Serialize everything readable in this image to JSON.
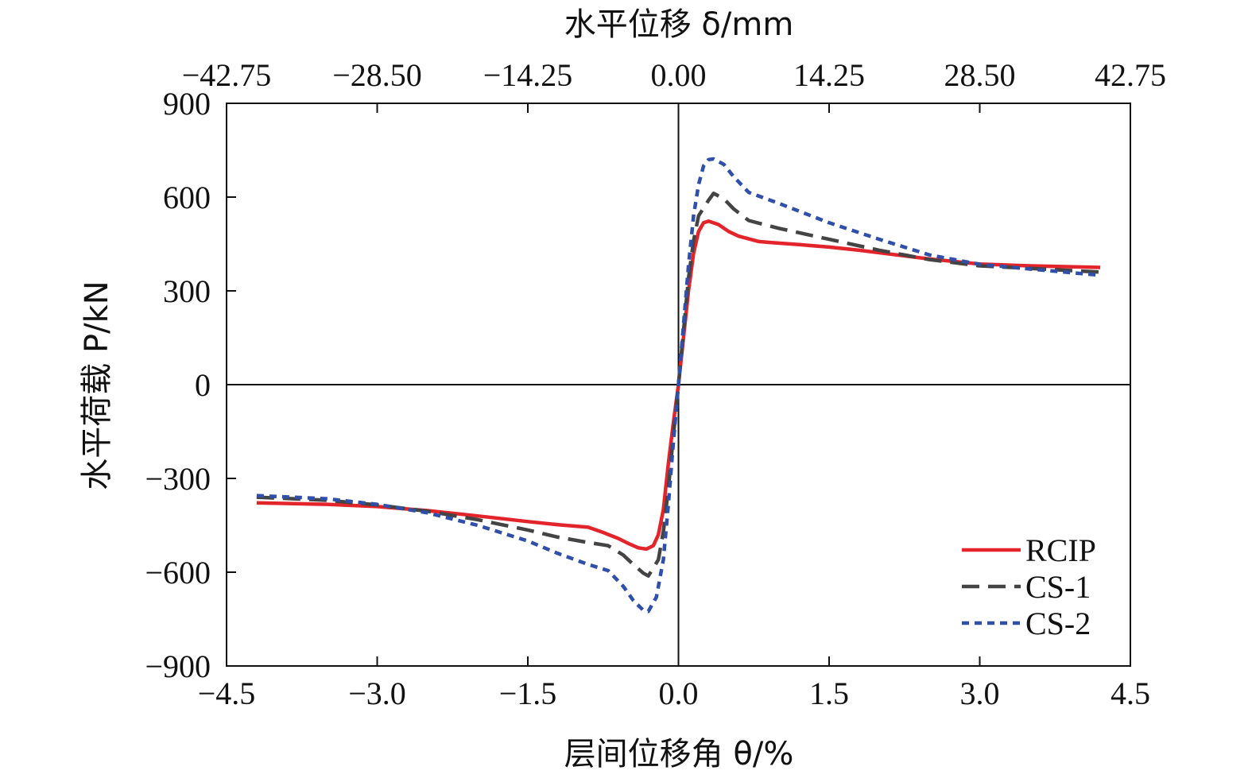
{
  "chart_data": {
    "type": "line",
    "title": "",
    "xlabel": "层间位移角 θ/%",
    "ylabel": "水平荷载 P/kN",
    "x2label": "水平位移 δ/mm",
    "xlim": [
      -4.5,
      4.5
    ],
    "ylim": [
      -900,
      900
    ],
    "x_ticks": [
      "−4.5",
      "−3.0",
      "−1.5",
      "0.0",
      "1.5",
      "3.0",
      "4.5"
    ],
    "x2_ticks": [
      "−42.75",
      "−28.50",
      "−14.25",
      "0.00",
      "14.25",
      "28.50",
      "42.75"
    ],
    "y_ticks": [
      "900",
      "600",
      "300",
      "0",
      "−300",
      "−600",
      "−900"
    ],
    "grid": false,
    "legend_position": "bottom-right",
    "series": [
      {
        "name": "RCIP",
        "color": "#e3242b",
        "dash": "solid",
        "x": [
          -4.2,
          -3.5,
          -3.0,
          -2.5,
          -2.0,
          -1.5,
          -1.2,
          -0.9,
          -0.75,
          -0.6,
          -0.5,
          -0.4,
          -0.32,
          -0.25,
          -0.2,
          -0.15,
          -0.1,
          -0.05,
          0,
          0.05,
          0.1,
          0.15,
          0.2,
          0.25,
          0.3,
          0.4,
          0.5,
          0.6,
          0.8,
          0.9,
          1.2,
          1.5,
          1.8,
          2.0,
          2.5,
          3.0,
          3.5,
          4.2
        ],
        "y": [
          -378,
          -383,
          -390,
          -403,
          -420,
          -438,
          -448,
          -456,
          -473,
          -492,
          -508,
          -522,
          -526,
          -515,
          -480,
          -400,
          -250,
          -120,
          0,
          150,
          300,
          420,
          490,
          518,
          523,
          512,
          490,
          475,
          458,
          455,
          448,
          440,
          430,
          422,
          402,
          386,
          380,
          375
        ]
      },
      {
        "name": "CS-1",
        "color": "#444444",
        "dash": "22,11",
        "x": [
          -4.2,
          -3.5,
          -3.0,
          -2.5,
          -2.0,
          -1.5,
          -1.2,
          -0.9,
          -0.7,
          -0.55,
          -0.45,
          -0.35,
          -0.3,
          -0.2,
          -0.15,
          -0.1,
          -0.05,
          0,
          0.05,
          0.1,
          0.15,
          0.2,
          0.3,
          0.35,
          0.45,
          0.55,
          0.7,
          1.0,
          1.5,
          2.0,
          2.5,
          3.0,
          3.5,
          4.2
        ],
        "y": [
          -360,
          -370,
          -385,
          -405,
          -432,
          -465,
          -488,
          -505,
          -515,
          -545,
          -575,
          -603,
          -612,
          -560,
          -470,
          -330,
          -160,
          0,
          170,
          340,
          460,
          540,
          590,
          612,
          595,
          562,
          525,
          500,
          465,
          430,
          400,
          380,
          372,
          360
        ]
      },
      {
        "name": "CS-2",
        "color": "#2f4fa8",
        "dash": "9,7",
        "x": [
          -4.2,
          -3.5,
          -3.0,
          -2.5,
          -2.0,
          -1.5,
          -1.2,
          -0.9,
          -0.7,
          -0.55,
          -0.45,
          -0.35,
          -0.3,
          -0.22,
          -0.15,
          -0.1,
          -0.05,
          0,
          0.05,
          0.1,
          0.15,
          0.2,
          0.25,
          0.3,
          0.35,
          0.45,
          0.55,
          0.7,
          1.0,
          1.5,
          2.0,
          2.5,
          3.0,
          3.5,
          4.2
        ],
        "y": [
          -355,
          -365,
          -383,
          -410,
          -450,
          -500,
          -540,
          -575,
          -595,
          -645,
          -690,
          -722,
          -725,
          -680,
          -560,
          -380,
          -180,
          0,
          190,
          380,
          540,
          640,
          700,
          720,
          722,
          705,
          665,
          615,
          580,
          518,
          465,
          415,
          385,
          370,
          350
        ]
      }
    ]
  }
}
